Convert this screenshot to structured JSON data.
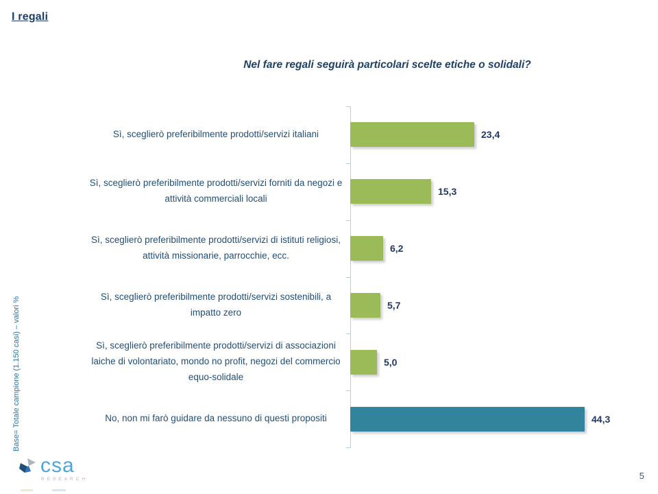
{
  "slide": {
    "header": "I regali",
    "base_note": "Base= Totale campione (1.150 casi) – valori %",
    "page_number": "5",
    "logo": {
      "name": "csa",
      "subtext": "RESEARCH"
    }
  },
  "chart_data": {
    "type": "bar",
    "orientation": "horizontal",
    "title": "Nel fare regali seguirà particolari scelte etiche o solidali?",
    "categories": [
      "Sì, sceglierò preferibilmente prodotti/servizi italiani",
      "Sì, sceglierò preferibilmente prodotti/servizi forniti da negozi e attività commerciali locali",
      "Sì, sceglierò preferibilmente prodotti/servizi di istituti religiosi, attività missionarie, parrocchie, ecc.",
      "Sì, sceglierò preferibilmente prodotti/servizi sostenibili, a impatto zero",
      "Sì, sceglierò preferibilmente prodotti/servizi di associazioni laiche di volontariato, mondo no profit, negozi del commercio equo-solidale",
      "No, non mi farò guidare da nessuno di questi propositi"
    ],
    "values": [
      23.4,
      15.3,
      6.2,
      5.7,
      5.0,
      44.3
    ],
    "value_labels": [
      "23,4",
      "15,3",
      "6,2",
      "5,7",
      "5,0",
      "44,3"
    ],
    "bar_colors": [
      "#9BBB59",
      "#9BBB59",
      "#9BBB59",
      "#9BBB59",
      "#9BBB59",
      "#31849B"
    ],
    "xlim": [
      0,
      50
    ],
    "grid": false,
    "legend": "none",
    "colors": {
      "label_text": "#1F4E79",
      "value_text": "#1F3864",
      "title_text": "#1F4066",
      "axis": "#B9CDE0",
      "green_bar": "#9BBB59",
      "teal_bar": "#31849B",
      "logo_blue": "#4FA5DC"
    }
  }
}
